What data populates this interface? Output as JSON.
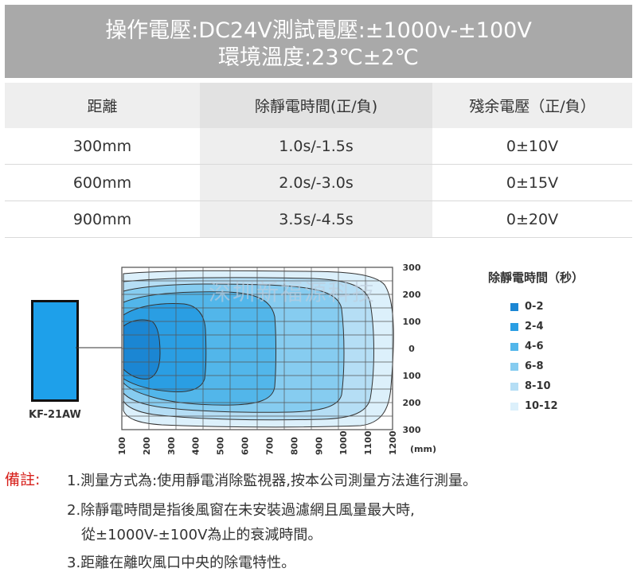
{
  "header": {
    "line1": "操作電壓:DC24V測試電壓:±1000v-±100V",
    "line2": "環境溫度:23℃±2℃"
  },
  "table": {
    "columns": [
      "距離",
      "除靜電時間(正/負)",
      "殘余電壓（正/負）"
    ],
    "rows": [
      [
        "300mm",
        "1.0s/-1.5s",
        "0±10V"
      ],
      [
        "600mm",
        "2.0s/-3.0s",
        "0±15V"
      ],
      [
        "900mm",
        "3.5s/-4.5s",
        "0±20V"
      ]
    ]
  },
  "sensor_label": "KF-21AW",
  "watermark": "深圳新福源科技",
  "chart_data": {
    "type": "heatmap",
    "x_ticks": [
      "100",
      "200",
      "300",
      "400",
      "500",
      "600",
      "700",
      "800",
      "900",
      "1000",
      "1100",
      "1200"
    ],
    "x_unit": "(mm)",
    "y_ticks": [
      "300",
      "200",
      "100",
      "0",
      "100",
      "200",
      "300"
    ],
    "legend_title": "除靜電時間（秒）",
    "legend": [
      {
        "label": "0-2",
        "color": "#1b86d3"
      },
      {
        "label": "2-4",
        "color": "#2a9ee3"
      },
      {
        "label": "4-6",
        "color": "#52b6ea"
      },
      {
        "label": "6-8",
        "color": "#86ccf0"
      },
      {
        "label": "8-10",
        "color": "#b5def5"
      },
      {
        "label": "10-12",
        "color": "#dcf0fb"
      }
    ]
  },
  "notes": {
    "title": "備註:",
    "items": [
      "1.測量方式為:使用靜電消除監視器,按本公司測量方法進行測量。",
      "2.除靜電時間是指後風窗在未安裝過濾網且風量最大時,",
      "從±1000V-±100V為止的衰減時間。",
      "3.距離在離吹風口中央的除電特性。"
    ]
  }
}
